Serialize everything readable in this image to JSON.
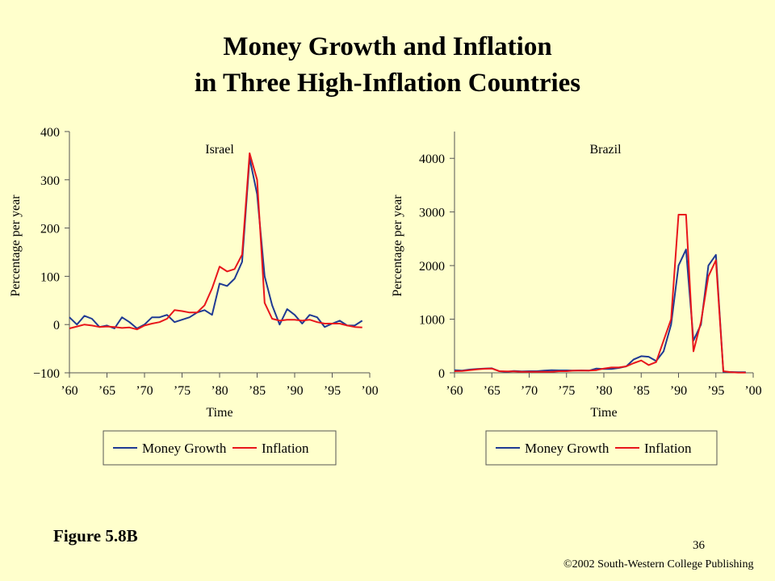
{
  "slide": {
    "title_line1": "Money Growth and Inflation",
    "title_line2": "in Three High-Inflation Countries",
    "figure_label": "Figure 5.8B",
    "page_number": "36",
    "copyright": "©2002 South-Western College Publishing"
  },
  "colors": {
    "money_growth": "#1F3A93",
    "inflation": "#E8161B",
    "background": "#FFFFCC",
    "axis": "#555555"
  },
  "chart_data": [
    {
      "type": "line",
      "title": "Israel",
      "xlabel": "Time",
      "ylabel": "Percentage per year",
      "xlim": [
        1960,
        2000
      ],
      "ylim": [
        -100,
        400
      ],
      "xticks": [
        1960,
        1965,
        1970,
        1975,
        1980,
        1985,
        1990,
        1995,
        2000
      ],
      "xtick_labels": [
        "’60",
        "’65",
        "’70",
        "’75",
        "’80",
        "’85",
        "’90",
        "’95",
        "’00"
      ],
      "yticks": [
        -100,
        0,
        100,
        200,
        300,
        400
      ],
      "ytick_labels": [
        "−100",
        "0",
        "100",
        "200",
        "300",
        "400"
      ],
      "grid": false,
      "legend": "bottom",
      "series": [
        {
          "name": "Money Growth",
          "color": "#1F3A93",
          "x": [
            1960,
            1961,
            1962,
            1963,
            1964,
            1965,
            1966,
            1967,
            1968,
            1969,
            1970,
            1971,
            1972,
            1973,
            1974,
            1975,
            1976,
            1977,
            1978,
            1979,
            1980,
            1981,
            1982,
            1983,
            1984,
            1985,
            1986,
            1987,
            1988,
            1989,
            1990,
            1991,
            1992,
            1993,
            1994,
            1995,
            1996,
            1997,
            1998,
            1999
          ],
          "y": [
            15,
            0,
            18,
            12,
            -5,
            -2,
            -8,
            15,
            5,
            -8,
            0,
            15,
            15,
            20,
            5,
            10,
            15,
            25,
            30,
            20,
            85,
            80,
            95,
            130,
            345,
            270,
            100,
            40,
            0,
            32,
            20,
            2,
            20,
            15,
            -5,
            2,
            8,
            -2,
            -2,
            8
          ]
        },
        {
          "name": "Inflation",
          "color": "#E8161B",
          "x": [
            1960,
            1961,
            1962,
            1963,
            1964,
            1965,
            1966,
            1967,
            1968,
            1969,
            1970,
            1971,
            1972,
            1973,
            1974,
            1975,
            1976,
            1977,
            1978,
            1979,
            1980,
            1981,
            1982,
            1983,
            1984,
            1985,
            1986,
            1987,
            1988,
            1989,
            1990,
            1991,
            1992,
            1993,
            1994,
            1995,
            1996,
            1997,
            1998,
            1999
          ],
          "y": [
            -8,
            -4,
            0,
            -2,
            -5,
            -4,
            -5,
            -7,
            -6,
            -10,
            -2,
            2,
            5,
            12,
            30,
            28,
            25,
            25,
            40,
            75,
            120,
            110,
            115,
            145,
            355,
            300,
            45,
            12,
            8,
            10,
            10,
            8,
            10,
            5,
            2,
            2,
            2,
            -2,
            -5,
            -6
          ]
        }
      ]
    },
    {
      "type": "line",
      "title": "Brazil",
      "xlabel": "Time",
      "ylabel": "Percentage per year",
      "xlim": [
        1960,
        2000
      ],
      "ylim": [
        0,
        4500
      ],
      "xticks": [
        1960,
        1965,
        1970,
        1975,
        1980,
        1985,
        1990,
        1995,
        2000
      ],
      "xtick_labels": [
        "’60",
        "’65",
        "’70",
        "’75",
        "’80",
        "’85",
        "’90",
        "’95",
        "’00"
      ],
      "yticks": [
        0,
        1000,
        2000,
        3000,
        4000
      ],
      "ytick_labels": [
        "0",
        "1000",
        "2000",
        "3000",
        "4000"
      ],
      "grid": false,
      "legend": "bottom",
      "series": [
        {
          "name": "Money Growth",
          "color": "#1F3A93",
          "x": [
            1960,
            1961,
            1962,
            1963,
            1964,
            1965,
            1966,
            1967,
            1968,
            1969,
            1970,
            1971,
            1972,
            1973,
            1974,
            1975,
            1976,
            1977,
            1978,
            1979,
            1980,
            1981,
            1982,
            1983,
            1984,
            1985,
            1986,
            1987,
            1988,
            1989,
            1990,
            1991,
            1992,
            1993,
            1994,
            1995,
            1996,
            1997,
            1998,
            1999
          ],
          "y": [
            50,
            40,
            60,
            70,
            80,
            85,
            30,
            20,
            35,
            25,
            30,
            30,
            40,
            50,
            45,
            45,
            40,
            45,
            40,
            80,
            70,
            70,
            90,
            120,
            250,
            310,
            300,
            220,
            400,
            900,
            2000,
            2300,
            600,
            900,
            2000,
            2200,
            20,
            15,
            10,
            10
          ]
        },
        {
          "name": "Inflation",
          "color": "#E8161B",
          "x": [
            1960,
            1961,
            1962,
            1963,
            1964,
            1965,
            1966,
            1967,
            1968,
            1969,
            1970,
            1971,
            1972,
            1973,
            1974,
            1975,
            1976,
            1977,
            1978,
            1979,
            1980,
            1981,
            1982,
            1983,
            1984,
            1985,
            1986,
            1987,
            1988,
            1989,
            1990,
            1991,
            1992,
            1993,
            1994,
            1995,
            1996,
            1997,
            1998,
            1999
          ],
          "y": [
            30,
            35,
            50,
            65,
            75,
            80,
            30,
            25,
            25,
            20,
            20,
            20,
            20,
            20,
            30,
            30,
            40,
            40,
            40,
            50,
            80,
            100,
            100,
            120,
            180,
            230,
            145,
            200,
            600,
            1000,
            2950,
            2950,
            400,
            950,
            1800,
            2100,
            30,
            10,
            5,
            5
          ]
        }
      ]
    }
  ]
}
